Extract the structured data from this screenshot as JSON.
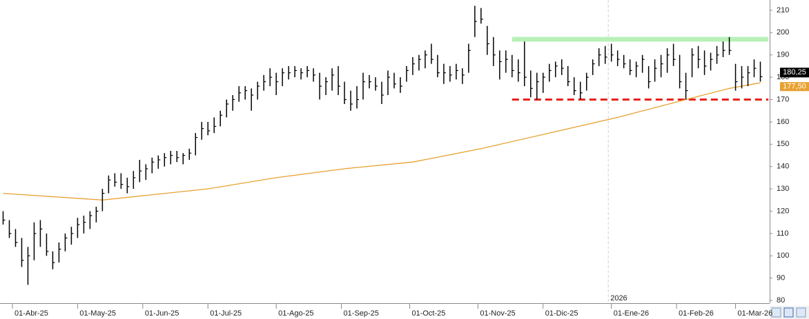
{
  "chart_data": {
    "type": "ohlc",
    "ylim": [
      78.8,
      214.6
    ],
    "yticks": [
      80,
      90,
      100,
      110,
      120,
      130,
      140,
      150,
      160,
      170,
      180,
      190,
      200,
      210
    ],
    "xlim": [
      -0.5,
      123.5
    ],
    "xticks": [
      {
        "value": 1.5,
        "label": "01-Abr-25"
      },
      {
        "value": 12,
        "label": "01-May-25"
      },
      {
        "value": 22.5,
        "label": "01-Jun-25"
      },
      {
        "value": 33,
        "label": "01-Jul-25"
      },
      {
        "value": 44,
        "label": "01-Ago-25"
      },
      {
        "value": 54.5,
        "label": "01-Sep-25"
      },
      {
        "value": 65.5,
        "label": "01-Oct-25"
      },
      {
        "value": 76.5,
        "label": "01-Nov-25"
      },
      {
        "value": 87,
        "label": "01-Dic-25"
      },
      {
        "value": 98,
        "label": "01-Ene-26"
      },
      {
        "value": 108.5,
        "label": "01-Feb-26"
      },
      {
        "value": 118,
        "label": "01-Mar-26"
      }
    ],
    "year_marker": {
      "value": 97.5,
      "label": "2026"
    },
    "price": {
      "color": "#000000",
      "low": [
        114,
        108,
        104,
        95,
        87,
        98,
        104,
        100,
        94,
        97,
        102,
        105,
        108,
        110,
        112,
        115,
        120,
        128,
        131,
        130,
        128,
        130,
        133,
        134,
        137,
        139,
        140,
        141,
        142,
        141,
        143,
        145,
        152,
        154,
        155,
        158,
        162,
        165,
        169,
        170,
        165,
        170,
        174,
        176,
        172,
        176,
        179,
        180,
        179,
        180,
        178,
        170,
        172,
        174,
        172,
        168,
        165,
        166,
        170,
        175,
        174,
        168,
        172,
        175,
        173,
        178,
        181,
        183,
        184,
        186,
        180,
        177,
        178,
        179,
        177,
        182,
        198,
        204,
        190,
        185,
        179,
        182,
        180,
        178,
        176,
        171,
        170,
        173,
        178,
        180,
        181,
        176,
        172,
        170,
        174,
        181,
        185,
        186,
        187,
        185,
        184,
        181,
        180,
        182,
        175,
        178,
        180,
        182,
        185,
        175,
        170,
        180,
        184,
        181,
        183,
        186,
        189,
        190,
        174,
        175,
        176,
        180,
        178
      ],
      "high": [
        120,
        116,
        112,
        108,
        104,
        115,
        116,
        110,
        102,
        106,
        110,
        113,
        117,
        118,
        120,
        122,
        130,
        136,
        137,
        137,
        135,
        138,
        143,
        141,
        144,
        145,
        146,
        147,
        147,
        146,
        148,
        155,
        160,
        160,
        162,
        165,
        170,
        172,
        176,
        176,
        175,
        178,
        181,
        184,
        182,
        184,
        185,
        185,
        184,
        185,
        184,
        182,
        180,
        184,
        185,
        178,
        174,
        176,
        182,
        181,
        180,
        178,
        183,
        182,
        180,
        185,
        189,
        190,
        192,
        195,
        190,
        186,
        185,
        186,
        184,
        195,
        212,
        211,
        203,
        198,
        192,
        192,
        190,
        188,
        196,
        183,
        182,
        182,
        186,
        187,
        188,
        185,
        180,
        178,
        182,
        188,
        193,
        194,
        195,
        192,
        190,
        188,
        187,
        190,
        185,
        188,
        190,
        193,
        195,
        190,
        182,
        193,
        194,
        192,
        191,
        194,
        196,
        198,
        186,
        185,
        185,
        188,
        187
      ],
      "close": [
        116,
        110,
        106,
        98,
        100,
        110,
        112,
        102,
        97,
        103,
        108,
        110,
        114,
        115,
        118,
        120,
        128,
        134,
        133,
        132,
        131,
        135,
        138,
        139,
        142,
        143,
        144,
        145,
        144,
        145,
        146,
        153,
        157,
        156,
        158,
        163,
        168,
        170,
        173,
        174,
        172,
        176,
        178,
        180,
        178,
        182,
        182,
        183,
        182,
        183,
        181,
        176,
        178,
        181,
        176,
        170,
        168,
        170,
        178,
        178,
        176,
        172,
        180,
        177,
        176,
        183,
        186,
        188,
        190,
        188,
        182,
        182,
        181,
        183,
        181,
        192,
        205,
        206,
        195,
        190,
        187,
        188,
        183,
        182,
        180,
        175,
        178,
        180,
        183,
        185,
        184,
        178,
        174,
        173,
        180,
        186,
        190,
        189,
        190,
        188,
        186,
        183,
        185,
        188,
        178,
        184,
        186,
        190,
        188,
        178,
        174,
        190,
        188,
        185,
        188,
        190,
        192,
        192,
        178,
        180,
        182,
        184,
        180.25
      ],
      "close_label": "180,25"
    },
    "moving_average": {
      "color": "#e8a030",
      "x": [
        0,
        16,
        33,
        44,
        55,
        66,
        77,
        88,
        99,
        110,
        117,
        122
      ],
      "values": [
        128,
        125,
        130,
        135,
        139,
        142,
        148,
        155,
        162,
        170,
        175,
        177.5
      ],
      "last_label": "177,50"
    },
    "levels": [
      {
        "value": 197,
        "from": 82,
        "to": 123.3,
        "color": "#b8f0b8",
        "style": "solid"
      },
      {
        "value": 170,
        "from": 82,
        "to": 123.3,
        "color": "#e8201a",
        "style": "dashed"
      }
    ]
  }
}
